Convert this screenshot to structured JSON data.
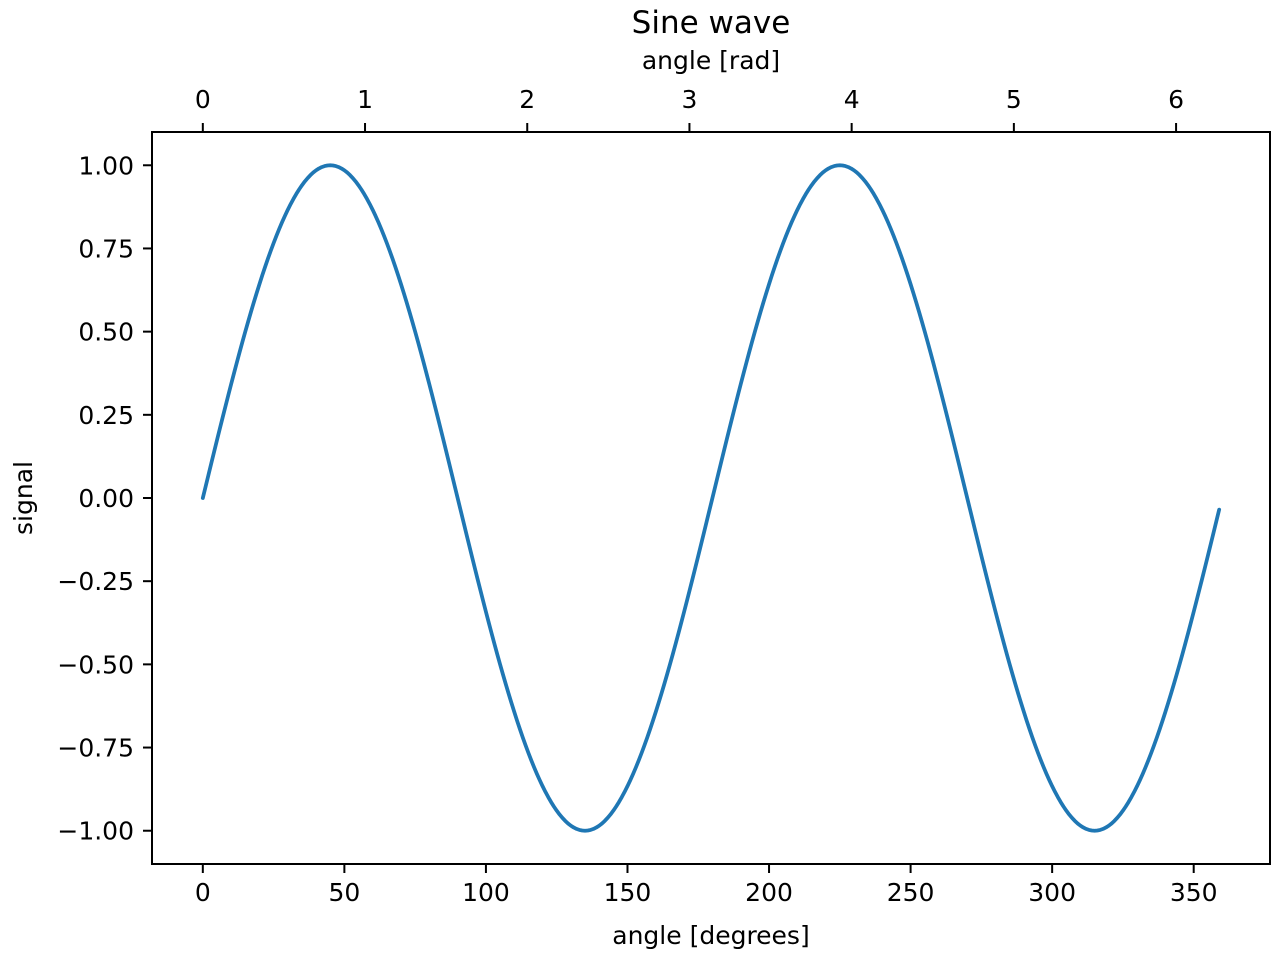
{
  "figure": {
    "background": "#ffffff"
  },
  "chart_data": {
    "type": "line",
    "title": "Sine wave",
    "xlabel": "angle [degrees]",
    "ylabel": "signal",
    "top_xlabel": "angle [rad]",
    "grid": false,
    "legend": null,
    "axis_color": "#000000",
    "text_color": "#000000",
    "xlim": [
      -17.95,
      376.95
    ],
    "ylim": [
      -1.1,
      1.1
    ],
    "x_axis": {
      "unit": "degrees",
      "ticks": [
        0,
        50,
        100,
        150,
        200,
        250,
        300,
        350
      ],
      "labels": [
        "0",
        "50",
        "100",
        "150",
        "200",
        "250",
        "300",
        "350"
      ]
    },
    "top_axis": {
      "unit": "radians",
      "ticks": [
        0,
        1,
        2,
        3,
        4,
        5,
        6
      ],
      "labels": [
        "0",
        "1",
        "2",
        "3",
        "4",
        "5",
        "6"
      ]
    },
    "y_axis": {
      "ticks": [
        -1.0,
        -0.75,
        -0.5,
        -0.25,
        0.0,
        0.25,
        0.5,
        0.75,
        1.0
      ],
      "labels": [
        "−1.00",
        "−0.75",
        "−0.50",
        "−0.25",
        "0.00",
        "0.25",
        "0.50",
        "0.75",
        "1.00"
      ]
    },
    "series": [
      {
        "name": "signal",
        "color": "#1f77b4",
        "line_width": 3.75,
        "generator": {
          "type": "sine",
          "formula": "y = sin(2 * x_deg * pi / 180)",
          "amplitude": 1,
          "cycles_per_360deg": 2,
          "x_start_deg": 0,
          "x_end_deg": 359,
          "x_step_deg": 1
        },
        "key_points": [
          {
            "x_deg": 0,
            "y": 0
          },
          {
            "x_deg": 45,
            "y": 1
          },
          {
            "x_deg": 90,
            "y": 0
          },
          {
            "x_deg": 135,
            "y": -1
          },
          {
            "x_deg": 180,
            "y": 0
          },
          {
            "x_deg": 225,
            "y": 1
          },
          {
            "x_deg": 270,
            "y": 0
          },
          {
            "x_deg": 315,
            "y": -1
          },
          {
            "x_deg": 359,
            "y": -0.035
          }
        ]
      }
    ]
  }
}
